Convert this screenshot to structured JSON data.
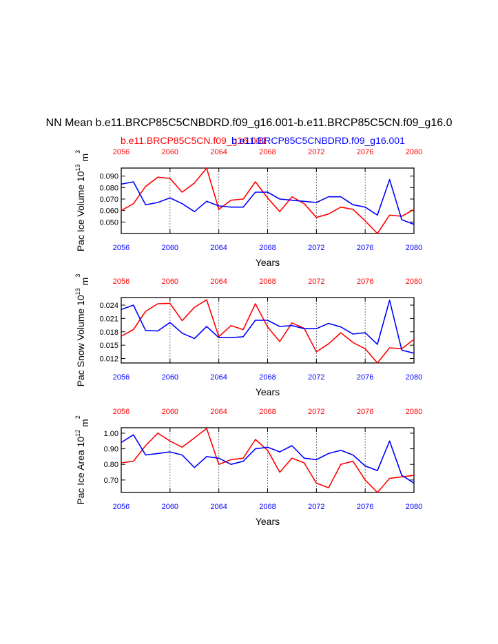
{
  "title": "NN Mean b.e11.BRCP85C5CNBDRD.f09_g16.001-b.e11.BRCP85C5CN.f09_g16.0",
  "subtitle_red": "b.e11.BRCP85C5CN.f09_g16.001",
  "subtitle_blue": "b.e11.BRCP85C5CNBDRD.f09_g16.001",
  "colors": {
    "red": "#ff0000",
    "blue": "#0000ff",
    "grid": "#555555"
  },
  "chart_data": [
    {
      "type": "line",
      "ylabel": "Pac Ice Volume 10",
      "ylabel_exp": "13",
      "ylabel_unit": " m",
      "ylabel_unit_exp": "3",
      "xlabel": "Years",
      "xlim": [
        2056,
        2080
      ],
      "ylim": [
        0.04,
        0.097
      ],
      "yticks": [
        "0.050",
        "0.060",
        "0.070",
        "0.080",
        "0.090"
      ],
      "xticks": [
        "2056",
        "2060",
        "2064",
        "2068",
        "2072",
        "2076",
        "2080"
      ],
      "grid_x": [
        2060,
        2064,
        2068,
        2072,
        2076
      ],
      "x": [
        2056,
        2057,
        2058,
        2059,
        2060,
        2061,
        2062,
        2063,
        2064,
        2065,
        2066,
        2067,
        2068,
        2069,
        2070,
        2071,
        2072,
        2073,
        2074,
        2075,
        2076,
        2077,
        2078,
        2079,
        2080
      ],
      "series": [
        {
          "name": "b.e11.BRCP85C5CN.f09_g16.001",
          "color": "#ff0000",
          "values": [
            0.06,
            0.066,
            0.081,
            0.089,
            0.088,
            0.076,
            0.084,
            0.097,
            0.061,
            0.069,
            0.07,
            0.085,
            0.071,
            0.059,
            0.072,
            0.066,
            0.054,
            0.057,
            0.063,
            0.061,
            0.051,
            0.04,
            0.056,
            0.055,
            0.061
          ]
        },
        {
          "name": "b.e11.BRCP85C5CNBDRD.f09_g16.001",
          "color": "#0000ff",
          "values": [
            0.083,
            0.085,
            0.065,
            0.067,
            0.071,
            0.066,
            0.059,
            0.068,
            0.064,
            0.063,
            0.063,
            0.076,
            0.076,
            0.07,
            0.069,
            0.068,
            0.067,
            0.072,
            0.072,
            0.065,
            0.063,
            0.056,
            0.087,
            0.052,
            0.048
          ]
        }
      ]
    },
    {
      "type": "line",
      "ylabel": "Pac Snow Volume 10",
      "ylabel_exp": "13",
      "ylabel_unit": " m",
      "ylabel_unit_exp": "3",
      "xlabel": "Years",
      "xlim": [
        2056,
        2080
      ],
      "ylim": [
        0.011,
        0.0257
      ],
      "yticks": [
        "0.012",
        "0.015",
        "0.018",
        "0.021",
        "0.024"
      ],
      "xticks": [
        "2056",
        "2060",
        "2064",
        "2068",
        "2072",
        "2076",
        "2080"
      ],
      "grid_x": [
        2060,
        2064,
        2068,
        2072,
        2076
      ],
      "x": [
        2056,
        2057,
        2058,
        2059,
        2060,
        2061,
        2062,
        2063,
        2064,
        2065,
        2066,
        2067,
        2068,
        2069,
        2070,
        2071,
        2072,
        2073,
        2074,
        2075,
        2076,
        2077,
        2078,
        2079,
        2080
      ],
      "series": [
        {
          "name": "b.e11.BRCP85C5CN.f09_g16.001",
          "color": "#ff0000",
          "values": [
            0.017,
            0.0185,
            0.0226,
            0.0243,
            0.0244,
            0.0205,
            0.0235,
            0.0252,
            0.0169,
            0.0194,
            0.0185,
            0.0243,
            0.0191,
            0.0158,
            0.02,
            0.0188,
            0.0135,
            0.0153,
            0.0178,
            0.0156,
            0.0142,
            0.011,
            0.0144,
            0.0142,
            0.0163
          ]
        },
        {
          "name": "b.e11.BRCP85C5CNBDRD.f09_g16.001",
          "color": "#0000ff",
          "values": [
            0.023,
            0.024,
            0.0183,
            0.0182,
            0.0201,
            0.0177,
            0.0165,
            0.0192,
            0.0167,
            0.0167,
            0.0169,
            0.0206,
            0.0206,
            0.0192,
            0.0194,
            0.0187,
            0.0187,
            0.0199,
            0.0191,
            0.0175,
            0.0178,
            0.0152,
            0.0251,
            0.0139,
            0.0132
          ]
        }
      ]
    },
    {
      "type": "line",
      "ylabel": "Pac Ice Area 10",
      "ylabel_exp": "12",
      "ylabel_unit": " m",
      "ylabel_unit_exp": "2",
      "xlabel": "Years",
      "xlim": [
        2056,
        2080
      ],
      "ylim": [
        0.62,
        1.035
      ],
      "yticks": [
        "0.70",
        "0.80",
        "0.90",
        "1.00"
      ],
      "xticks": [
        "2056",
        "2060",
        "2064",
        "2068",
        "2072",
        "2076",
        "2080"
      ],
      "grid_x": [
        2060,
        2064,
        2068,
        2072,
        2076
      ],
      "x": [
        2056,
        2057,
        2058,
        2059,
        2060,
        2061,
        2062,
        2063,
        2064,
        2065,
        2066,
        2067,
        2068,
        2069,
        2070,
        2071,
        2072,
        2073,
        2074,
        2075,
        2076,
        2077,
        2078,
        2079,
        2080
      ],
      "series": [
        {
          "name": "b.e11.BRCP85C5CN.f09_g16.001",
          "color": "#ff0000",
          "values": [
            0.81,
            0.82,
            0.92,
            1.0,
            0.95,
            0.91,
            0.97,
            1.03,
            0.8,
            0.83,
            0.84,
            0.96,
            0.89,
            0.75,
            0.84,
            0.81,
            0.68,
            0.65,
            0.8,
            0.82,
            0.7,
            0.62,
            0.71,
            0.72,
            0.73
          ]
        },
        {
          "name": "b.e11.BRCP85C5CNBDRD.f09_g16.001",
          "color": "#0000ff",
          "values": [
            0.94,
            0.99,
            0.86,
            0.87,
            0.88,
            0.86,
            0.78,
            0.85,
            0.84,
            0.8,
            0.82,
            0.9,
            0.91,
            0.88,
            0.92,
            0.84,
            0.83,
            0.87,
            0.89,
            0.86,
            0.79,
            0.76,
            0.95,
            0.73,
            0.68
          ]
        }
      ]
    }
  ]
}
